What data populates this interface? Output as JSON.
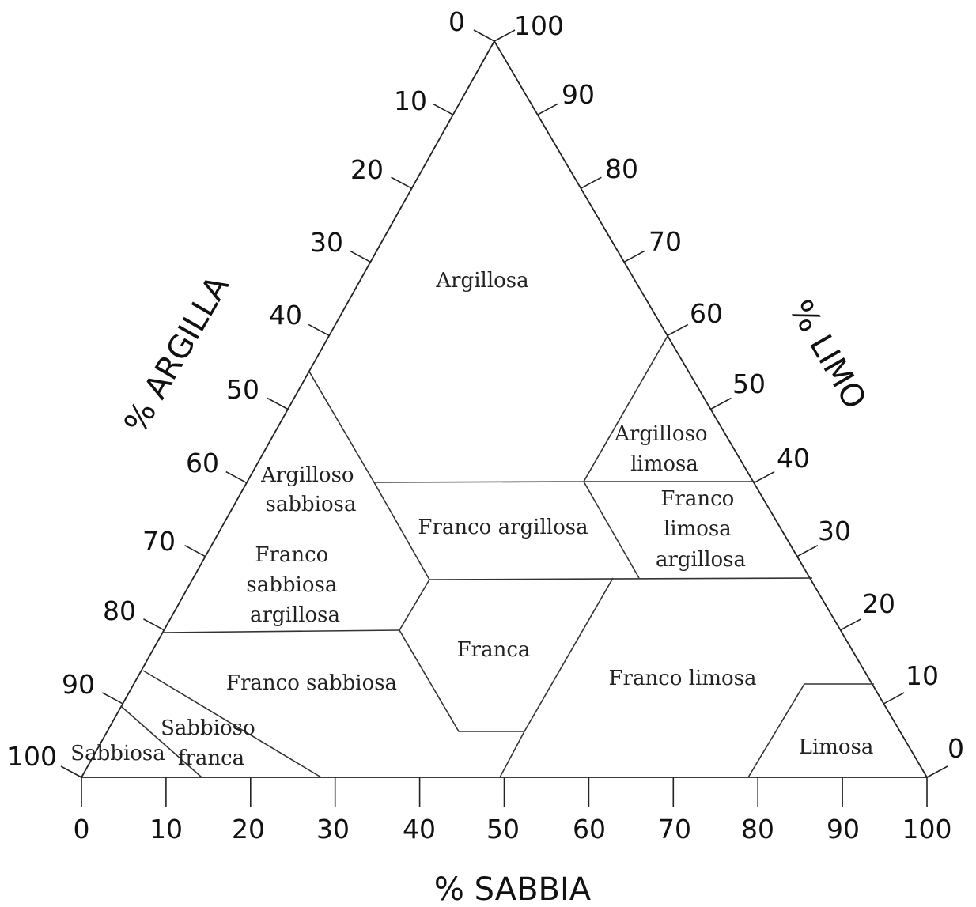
{
  "axes": {
    "bottom_title": "% SABBIA",
    "left_title": "% ARGILLA",
    "right_title": "% LIMO",
    "bottom_ticks": [
      "0",
      "10",
      "20",
      "30",
      "40",
      "50",
      "60",
      "70",
      "80",
      "90",
      "100"
    ],
    "left_ticks": [
      "0",
      "10",
      "20",
      "30",
      "40",
      "50",
      "60",
      "70",
      "80",
      "90",
      "100"
    ],
    "right_ticks": [
      "100",
      "90",
      "80",
      "70",
      "60",
      "50",
      "40",
      "30",
      "20",
      "10",
      "0"
    ]
  },
  "regions": {
    "argillosa": [
      "Argillosa"
    ],
    "argilloso_sabbiosa": [
      "Argilloso",
      "sabbiosa"
    ],
    "argilloso_limosa": [
      "Argilloso",
      "limosa"
    ],
    "franco_argillosa": [
      "Franco argillosa"
    ],
    "franco_limosa_argillosa": [
      "Franco",
      "limosa",
      "argillosa"
    ],
    "franco_sabbiosa_argillosa": [
      "Franco",
      "sabbiosa",
      "argillosa"
    ],
    "franca": [
      "Franca"
    ],
    "franco_limosa": [
      "Franco limosa"
    ],
    "franco_sabbiosa": [
      "Franco sabbiosa"
    ],
    "sabbioso_franca": [
      "Sabbioso",
      "franca"
    ],
    "sabbiosa": [
      "Sabbiosa"
    ],
    "limosa": [
      "Limosa"
    ]
  }
}
